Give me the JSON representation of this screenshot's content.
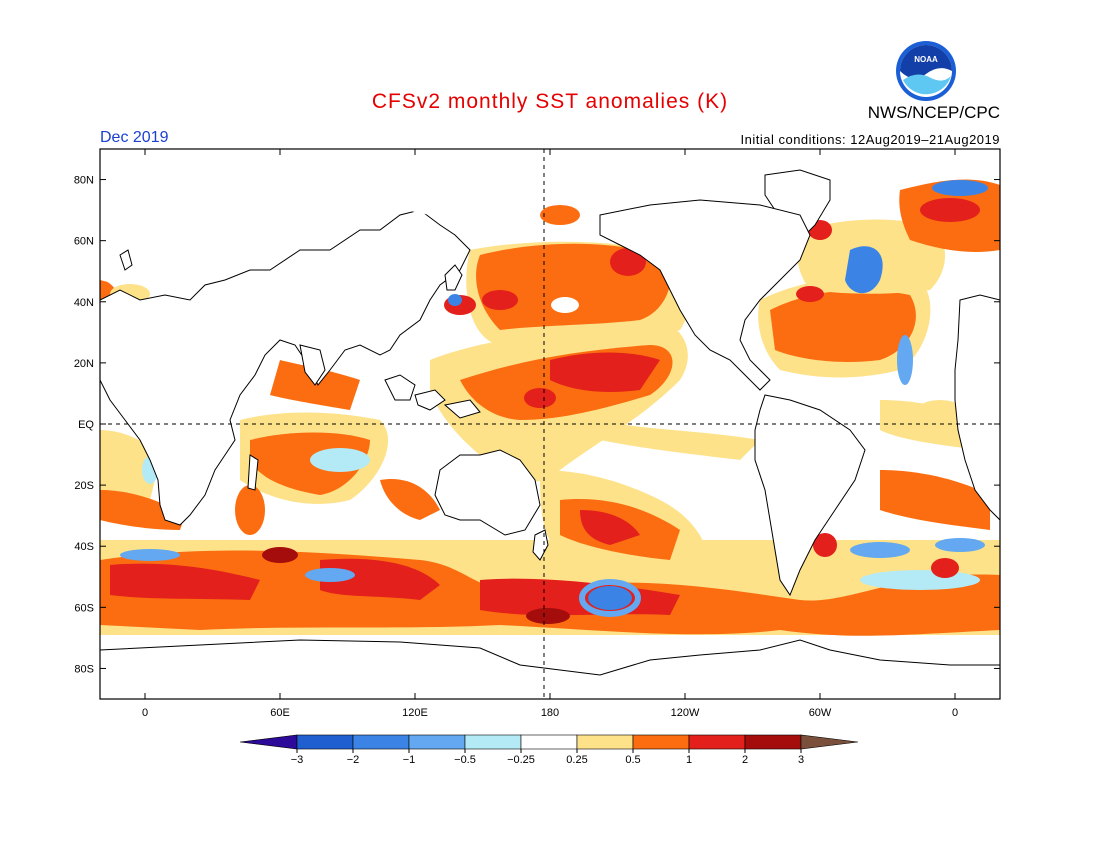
{
  "header": {
    "title": "CFSv2 monthly SST anomalies (K)",
    "agency": "NWS/NCEP/CPC",
    "logo_text": "NOAA",
    "month": "Dec 2019",
    "initial_conditions": "Initial conditions: 12Aug2019–21Aug2019"
  },
  "map": {
    "lat_labels": [
      "80N",
      "60N",
      "40N",
      "20N",
      "EQ",
      "20S",
      "40S",
      "60S",
      "80S"
    ],
    "lat_values": [
      80,
      60,
      40,
      20,
      0,
      -20,
      -40,
      -60,
      -80
    ],
    "lon_labels": [
      "0",
      "60E",
      "120E",
      "180",
      "120W",
      "60W",
      "0"
    ],
    "lon_values": [
      0,
      60,
      120,
      180,
      240,
      300,
      360
    ],
    "lon_range": [
      -20,
      380
    ],
    "lat_range": [
      -90,
      90
    ],
    "reference_lines": [
      "equator",
      "dateline"
    ]
  },
  "colorbar": {
    "labels": [
      "−3",
      "−2",
      "−1",
      "−0.5",
      "−0.25",
      "0.25",
      "0.5",
      "1",
      "2",
      "3"
    ],
    "colors": [
      "#2d0a9a",
      "#1f5fd0",
      "#3b84e6",
      "#63a8f0",
      "#b3eaf5",
      "#ffffff",
      "#fde28a",
      "#fb6d10",
      "#e3201b",
      "#a50d0d",
      "#7a4f3c"
    ]
  },
  "palette": {
    "land": "#ffffff",
    "coast": "#000000",
    "neutral": "#ffffff",
    "warm_weak": "#fde28a",
    "warm_mid": "#fb6d10",
    "warm_strong": "#e3201b",
    "warm_extreme": "#a50d0d",
    "cool_weak": "#b3eaf5",
    "cool_mid": "#63a8f0",
    "cool_strong": "#3b84e6"
  }
}
